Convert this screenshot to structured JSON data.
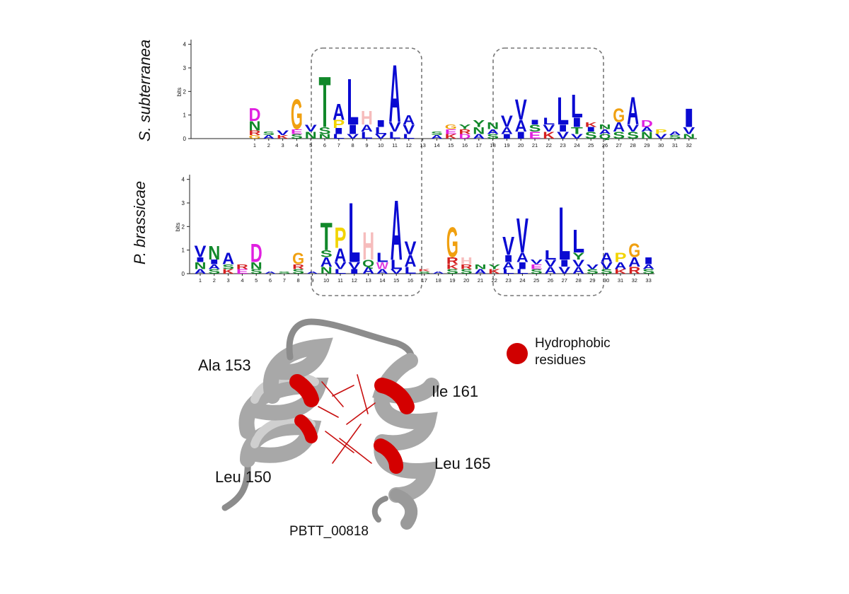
{
  "chart_data": [
    {
      "type": "logo",
      "title": "S. subterranea",
      "y_label": "bits",
      "ylim": [
        0,
        4.2
      ],
      "yticks": [
        0,
        1,
        2,
        3,
        4
      ],
      "categories": [
        "1",
        "2",
        "3",
        "4",
        "5",
        "6",
        "7",
        "8",
        "9",
        "10",
        "11",
        "12",
        "13",
        "14",
        "15",
        "16",
        "17",
        "18",
        "19",
        "20",
        "21",
        "22",
        "23",
        "24",
        "25",
        "26",
        "27",
        "28",
        "29",
        "30",
        "31",
        "32"
      ],
      "stacks": [
        [
          {
            "letter": "G",
            "bits": 0.15
          },
          {
            "letter": "R",
            "bits": 0.2
          },
          {
            "letter": "N",
            "bits": 0.4
          },
          {
            "letter": "D",
            "bits": 0.55
          }
        ],
        [
          {
            "letter": "A",
            "bits": 0.15
          },
          {
            "letter": "S",
            "bits": 0.15
          }
        ],
        [
          {
            "letter": "K",
            "bits": 0.15
          },
          {
            "letter": "V",
            "bits": 0.2
          }
        ],
        [
          {
            "letter": "S",
            "bits": 0.2
          },
          {
            "letter": "E",
            "bits": 0.2
          },
          {
            "letter": "G",
            "bits": 1.3
          }
        ],
        [
          {
            "letter": "N",
            "bits": 0.3
          },
          {
            "letter": "V",
            "bits": 0.3
          }
        ],
        [
          {
            "letter": "N",
            "bits": 0.2
          },
          {
            "letter": "S",
            "bits": 0.3
          },
          {
            "letter": "T",
            "bits": 2.2
          }
        ],
        [
          {
            "letter": "L",
            "bits": 0.2
          },
          {
            "letter": "I",
            "bits": 0.25
          },
          {
            "letter": "P",
            "bits": 0.35
          },
          {
            "letter": "A",
            "bits": 0.7
          }
        ],
        [
          {
            "letter": "V",
            "bits": 0.2
          },
          {
            "letter": "I",
            "bits": 0.4
          },
          {
            "letter": "L",
            "bits": 2.0
          }
        ],
        [
          {
            "letter": "L",
            "bits": 0.3
          },
          {
            "letter": "A",
            "bits": 0.3
          },
          {
            "letter": "H",
            "bits": 0.6
          }
        ],
        [
          {
            "letter": "V",
            "bits": 0.2
          },
          {
            "letter": "L",
            "bits": 0.3
          },
          {
            "letter": "I",
            "bits": 0.3
          }
        ],
        [
          {
            "letter": "L",
            "bits": 0.3
          },
          {
            "letter": "V",
            "bits": 0.4
          },
          {
            "letter": "A",
            "bits": 2.5
          }
        ],
        [
          {
            "letter": "L",
            "bits": 0.2
          },
          {
            "letter": "V",
            "bits": 0.4
          },
          {
            "letter": "A",
            "bits": 0.4
          }
        ],
        [],
        [
          {
            "letter": "A",
            "bits": 0.15
          },
          {
            "letter": "S",
            "bits": 0.15
          }
        ],
        [
          {
            "letter": "K",
            "bits": 0.2
          },
          {
            "letter": "E",
            "bits": 0.2
          },
          {
            "letter": "G",
            "bits": 0.2
          }
        ],
        [
          {
            "letter": "D",
            "bits": 0.2
          },
          {
            "letter": "R",
            "bits": 0.2
          },
          {
            "letter": "Y",
            "bits": 0.2
          }
        ],
        [
          {
            "letter": "A",
            "bits": 0.2
          },
          {
            "letter": "N",
            "bits": 0.3
          },
          {
            "letter": "Y",
            "bits": 0.3
          }
        ],
        [
          {
            "letter": "S",
            "bits": 0.2
          },
          {
            "letter": "A",
            "bits": 0.2
          },
          {
            "letter": "N",
            "bits": 0.3
          }
        ],
        [
          {
            "letter": "I",
            "bits": 0.2
          },
          {
            "letter": "A",
            "bits": 0.3
          },
          {
            "letter": "V",
            "bits": 0.5
          }
        ],
        [
          {
            "letter": "I",
            "bits": 0.3
          },
          {
            "letter": "A",
            "bits": 0.5
          },
          {
            "letter": "V",
            "bits": 0.9
          }
        ],
        [
          {
            "letter": "E",
            "bits": 0.3
          },
          {
            "letter": "S",
            "bits": 0.3
          },
          {
            "letter": "I",
            "bits": 0.2
          }
        ],
        [
          {
            "letter": "K",
            "bits": 0.3
          },
          {
            "letter": "V",
            "bits": 0.3
          },
          {
            "letter": "L",
            "bits": 0.3
          }
        ],
        [
          {
            "letter": "V",
            "bits": 0.3
          },
          {
            "letter": "I",
            "bits": 0.3
          },
          {
            "letter": "L",
            "bits": 1.2
          }
        ],
        [
          {
            "letter": "V",
            "bits": 0.2
          },
          {
            "letter": "T",
            "bits": 0.3
          },
          {
            "letter": "I",
            "bits": 0.4
          },
          {
            "letter": "L",
            "bits": 1.0
          }
        ],
        [
          {
            "letter": "S",
            "bits": 0.3
          },
          {
            "letter": "I",
            "bits": 0.2
          },
          {
            "letter": "K",
            "bits": 0.2
          }
        ],
        [
          {
            "letter": "Q",
            "bits": 0.2
          },
          {
            "letter": "A",
            "bits": 0.2
          },
          {
            "letter": "N",
            "bits": 0.2
          }
        ],
        [
          {
            "letter": "S",
            "bits": 0.3
          },
          {
            "letter": "A",
            "bits": 0.4
          },
          {
            "letter": "G",
            "bits": 0.6
          }
        ],
        [
          {
            "letter": "S",
            "bits": 0.3
          },
          {
            "letter": "V",
            "bits": 0.3
          },
          {
            "letter": "A",
            "bits": 1.2
          }
        ],
        [
          {
            "letter": "N",
            "bits": 0.3
          },
          {
            "letter": "A",
            "bits": 0.2
          },
          {
            "letter": "D",
            "bits": 0.3
          }
        ],
        [
          {
            "letter": "V",
            "bits": 0.2
          },
          {
            "letter": "P",
            "bits": 0.2
          }
        ],
        [
          {
            "letter": "S",
            "bits": 0.15
          },
          {
            "letter": "A",
            "bits": 0.15
          }
        ],
        [
          {
            "letter": "N",
            "bits": 0.2
          },
          {
            "letter": "V",
            "bits": 0.3
          },
          {
            "letter": "I",
            "bits": 0.8
          }
        ]
      ]
    },
    {
      "type": "logo",
      "title": "P. brassicae",
      "y_label": "bits",
      "ylim": [
        0,
        4.2
      ],
      "yticks": [
        0,
        1,
        2,
        3,
        4
      ],
      "categories": [
        "1",
        "2",
        "3",
        "4",
        "5",
        "6",
        "7",
        "8",
        "9",
        "10",
        "11",
        "12",
        "13",
        "14",
        "15",
        "16",
        "17",
        "18",
        "19",
        "20",
        "21",
        "22",
        "23",
        "24",
        "25",
        "26",
        "27",
        "28",
        "29",
        "30",
        "31",
        "32",
        "33"
      ],
      "stacks": [
        [
          {
            "letter": "A",
            "bits": 0.2
          },
          {
            "letter": "N",
            "bits": 0.3
          },
          {
            "letter": "I",
            "bits": 0.2
          },
          {
            "letter": "V",
            "bits": 0.5
          }
        ],
        [
          {
            "letter": "S",
            "bits": 0.2
          },
          {
            "letter": "A",
            "bits": 0.2
          },
          {
            "letter": "I",
            "bits": 0.2
          },
          {
            "letter": "N",
            "bits": 0.6
          }
        ],
        [
          {
            "letter": "K",
            "bits": 0.2
          },
          {
            "letter": "S",
            "bits": 0.2
          },
          {
            "letter": "A",
            "bits": 0.5
          }
        ],
        [
          {
            "letter": "E",
            "bits": 0.2
          },
          {
            "letter": "R",
            "bits": 0.2
          }
        ],
        [
          {
            "letter": "S",
            "bits": 0.2
          },
          {
            "letter": "N",
            "bits": 0.3
          },
          {
            "letter": "D",
            "bits": 0.8
          }
        ],
        [
          {
            "letter": "A",
            "bits": 0.1
          }
        ],
        [
          {
            "letter": "S",
            "bits": 0.1
          }
        ],
        [
          {
            "letter": "S",
            "bits": 0.2
          },
          {
            "letter": "R",
            "bits": 0.2
          },
          {
            "letter": "G",
            "bits": 0.5
          }
        ],
        [
          {
            "letter": "A",
            "bits": 0.1
          }
        ],
        [
          {
            "letter": "N",
            "bits": 0.3
          },
          {
            "letter": "A",
            "bits": 0.4
          },
          {
            "letter": "S",
            "bits": 0.3
          },
          {
            "letter": "T",
            "bits": 1.2
          }
        ],
        [
          {
            "letter": "L",
            "bits": 0.2
          },
          {
            "letter": "V",
            "bits": 0.3
          },
          {
            "letter": "A",
            "bits": 0.6
          },
          {
            "letter": "P",
            "bits": 0.9
          }
        ],
        [
          {
            "letter": "I",
            "bits": 0.2
          },
          {
            "letter": "V",
            "bits": 0.3
          },
          {
            "letter": "L",
            "bits": 2.6
          }
        ],
        [
          {
            "letter": "A",
            "bits": 0.3
          },
          {
            "letter": "Q",
            "bits": 0.3
          },
          {
            "letter": "H",
            "bits": 1.2
          }
        ],
        [
          {
            "letter": "A",
            "bits": 0.2
          },
          {
            "letter": "W",
            "bits": 0.3
          },
          {
            "letter": "L",
            "bits": 0.4
          }
        ],
        [
          {
            "letter": "V",
            "bits": 0.2
          },
          {
            "letter": "L",
            "bits": 0.4
          },
          {
            "letter": "A",
            "bits": 2.6
          }
        ],
        [
          {
            "letter": "L",
            "bits": 0.3
          },
          {
            "letter": "A",
            "bits": 0.5
          },
          {
            "letter": "V",
            "bits": 0.6
          }
        ],
        [
          {
            "letter": "S",
            "bits": 0.1
          },
          {
            "letter": "K",
            "bits": 0.1
          }
        ],
        [
          {
            "letter": "A",
            "bits": 0.1
          }
        ],
        [
          {
            "letter": "S",
            "bits": 0.2
          },
          {
            "letter": "K",
            "bits": 0.2
          },
          {
            "letter": "R",
            "bits": 0.3
          },
          {
            "letter": "G",
            "bits": 1.3
          }
        ],
        [
          {
            "letter": "S",
            "bits": 0.2
          },
          {
            "letter": "R",
            "bits": 0.2
          },
          {
            "letter": "H",
            "bits": 0.3
          }
        ],
        [
          {
            "letter": "A",
            "bits": 0.2
          },
          {
            "letter": "N",
            "bits": 0.2
          }
        ],
        [
          {
            "letter": "K",
            "bits": 0.2
          },
          {
            "letter": "Y",
            "bits": 0.2
          }
        ],
        [
          {
            "letter": "L",
            "bits": 0.2
          },
          {
            "letter": "A",
            "bits": 0.3
          },
          {
            "letter": "I",
            "bits": 0.3
          },
          {
            "letter": "V",
            "bits": 0.8
          }
        ],
        [
          {
            "letter": "L",
            "bits": 0.2
          },
          {
            "letter": "I",
            "bits": 0.3
          },
          {
            "letter": "A",
            "bits": 0.4
          },
          {
            "letter": "V",
            "bits": 1.5
          }
        ],
        [
          {
            "letter": "S",
            "bits": 0.2
          },
          {
            "letter": "E",
            "bits": 0.2
          },
          {
            "letter": "V",
            "bits": 0.2
          }
        ],
        [
          {
            "letter": "A",
            "bits": 0.3
          },
          {
            "letter": "V",
            "bits": 0.3
          },
          {
            "letter": "L",
            "bits": 0.4
          }
        ],
        [
          {
            "letter": "V",
            "bits": 0.3
          },
          {
            "letter": "I",
            "bits": 0.3
          },
          {
            "letter": "L",
            "bits": 2.3
          }
        ],
        [
          {
            "letter": "A",
            "bits": 0.3
          },
          {
            "letter": "V",
            "bits": 0.3
          },
          {
            "letter": "Y",
            "bits": 0.3
          },
          {
            "letter": "L",
            "bits": 1.0
          }
        ],
        [
          {
            "letter": "S",
            "bits": 0.2
          },
          {
            "letter": "V",
            "bits": 0.2
          }
        ],
        [
          {
            "letter": "S",
            "bits": 0.2
          },
          {
            "letter": "V",
            "bits": 0.3
          },
          {
            "letter": "A",
            "bits": 0.4
          }
        ],
        [
          {
            "letter": "K",
            "bits": 0.2
          },
          {
            "letter": "A",
            "bits": 0.3
          },
          {
            "letter": "P",
            "bits": 0.4
          }
        ],
        [
          {
            "letter": "R",
            "bits": 0.3
          },
          {
            "letter": "A",
            "bits": 0.4
          },
          {
            "letter": "G",
            "bits": 0.6
          }
        ],
        [
          {
            "letter": "S",
            "bits": 0.2
          },
          {
            "letter": "A",
            "bits": 0.2
          },
          {
            "letter": "I",
            "bits": 0.3
          }
        ]
      ]
    }
  ],
  "letter_colors": {
    "A": "#0a0ad2",
    "V": "#0a0ad2",
    "L": "#0a0ad2",
    "I": "#0a0ad2",
    "M": "#0a0ad2",
    "F": "#0a0ad2",
    "W": "#e040e0",
    "G": "#f0a010",
    "P": "#f2d400",
    "T": "#11882a",
    "S": "#11882a",
    "N": "#11882a",
    "Q": "#11882a",
    "Y": "#11882a",
    "D": "#e020e0",
    "E": "#e020e0",
    "H": "#f6bcbc",
    "K": "#d42020",
    "R": "#d42020",
    "C": "#888888"
  },
  "structure": {
    "labels": [
      "Ala 153",
      "Ile 161",
      "Leu 165",
      "Leu 150"
    ],
    "protein": "PBTT_00818",
    "legend": "Hydrophobic residues",
    "legend_color": "#d00000"
  }
}
